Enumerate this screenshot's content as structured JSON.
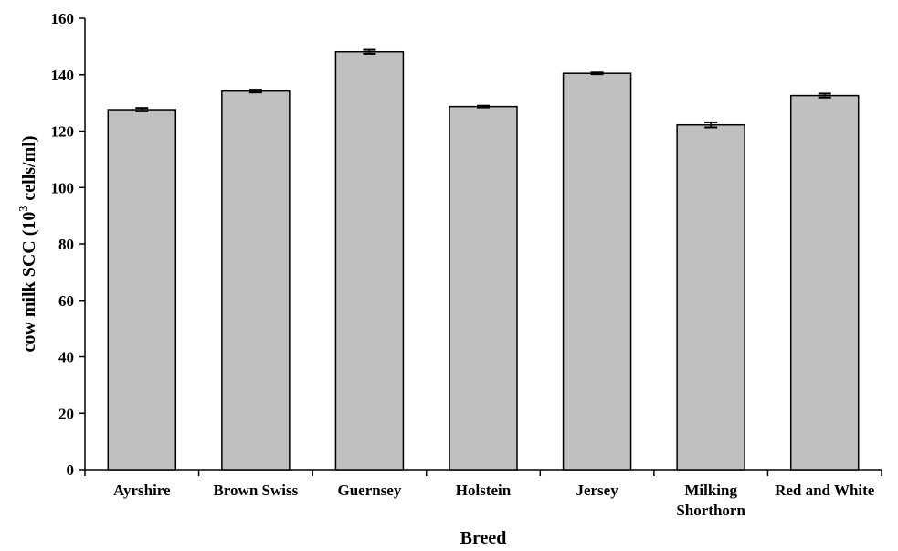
{
  "chart_data": {
    "type": "bar",
    "categories": [
      "Ayrshire",
      "Brown Swiss",
      "Guernsey",
      "Holstein",
      "Jersey",
      "Milking Shorthorn",
      "Red and White"
    ],
    "category_labels": [
      [
        "Ayrshire"
      ],
      [
        "Brown Swiss"
      ],
      [
        "Guernsey"
      ],
      [
        "Holstein"
      ],
      [
        "Jersey"
      ],
      [
        "Milking",
        "Shorthorn"
      ],
      [
        "Red and White"
      ]
    ],
    "values": [
      127.6,
      134.2,
      148.1,
      128.7,
      140.5,
      122.2,
      132.6
    ],
    "error": [
      0.6,
      0.5,
      0.7,
      0.3,
      0.3,
      0.9,
      0.7
    ],
    "xlabel": "Breed",
    "ylabel": {
      "before": "cow milk SCC (10",
      "sup": "3",
      "after": " cells/ml)"
    },
    "ylim": [
      0,
      160
    ],
    "yticks": [
      0,
      20,
      40,
      60,
      80,
      100,
      120,
      140,
      160
    ],
    "grid": false,
    "legend": "none",
    "colors": {
      "bar_fill": "#c0c0c0",
      "bar_stroke": "#000000",
      "axis": "#000000"
    }
  }
}
